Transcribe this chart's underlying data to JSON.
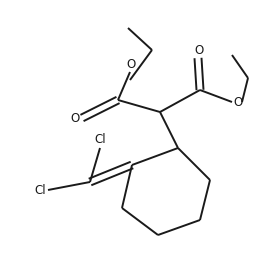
{
  "background_color": "#ffffff",
  "line_color": "#1a1a1a",
  "line_width": 1.4,
  "font_size": 8.5,
  "figsize": [
    2.6,
    2.72
  ],
  "dpi": 100,
  "xlim": [
    0,
    260
  ],
  "ylim": [
    0,
    272
  ]
}
